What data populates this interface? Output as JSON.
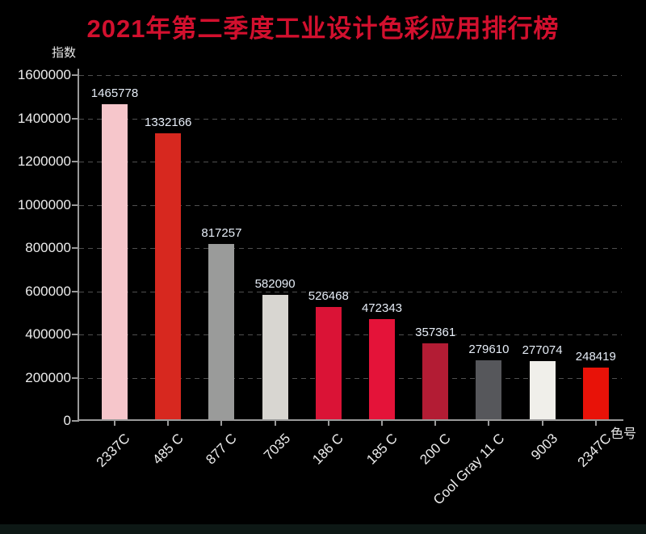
{
  "page": {
    "title": "2021年第二季度工业设计色彩应用排行榜"
  },
  "chart_data": {
    "type": "bar",
    "title": "2021年第二季度工业设计色彩应用排行榜",
    "xlabel": "色号",
    "ylabel": "指数",
    "categories": [
      "2337C",
      "485 C",
      "877 C",
      "7035",
      "186 C",
      "185 C",
      "200 C",
      "Cool Gray 11 C",
      "9003",
      "2347C"
    ],
    "values": [
      1465778,
      1332166,
      817257,
      582090,
      526468,
      472343,
      357361,
      279610,
      277074,
      248419
    ],
    "bar_colors": [
      "#f6c6cb",
      "#d7281f",
      "#9a9b9a",
      "#d8d6d1",
      "#da1336",
      "#e41339",
      "#b31c34",
      "#56575b",
      "#f0efea",
      "#e81208"
    ],
    "value_labels_shown": true,
    "ylim": [
      0,
      1600000
    ],
    "yticks": [
      0,
      200000,
      400000,
      600000,
      800000,
      1000000,
      1200000,
      1400000,
      1600000
    ],
    "grid": "dashed-horizontal",
    "legend": "none",
    "x_label_rotation_deg": -45
  },
  "colors": {
    "background": "#000000",
    "title": "#d2102e",
    "axis": "#9a9a9a",
    "gridline": "#4f4f4f",
    "y_tick_label": "#ededed",
    "value_label": "#e6edf7",
    "x_tick_label": "#ececec",
    "bottom_strip": "#0d1815"
  }
}
